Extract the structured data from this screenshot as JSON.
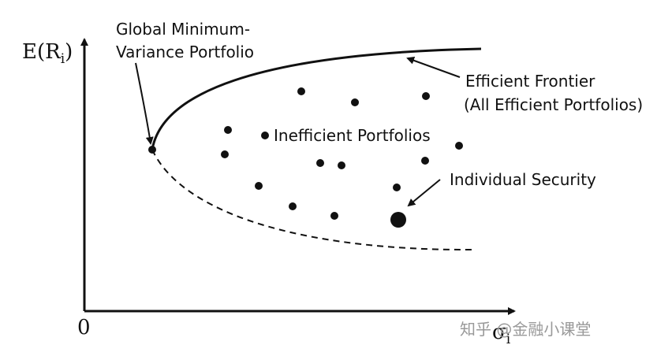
{
  "y_axis": {
    "label": "E(R",
    "sub": "i",
    "close": ")"
  },
  "origin": "0",
  "x_axis": {
    "label": "σ",
    "sub": "i"
  },
  "annotations": {
    "global_min": [
      "Global Minimum-",
      "Variance Portfolio"
    ],
    "efficient_frontier": [
      "Efficient Frontier",
      "(All Efficient Portfolios)"
    ],
    "inefficient": "Inefficient Portfolios",
    "individual": "Individual Security"
  },
  "watermark": "知乎 @金融小课堂"
}
